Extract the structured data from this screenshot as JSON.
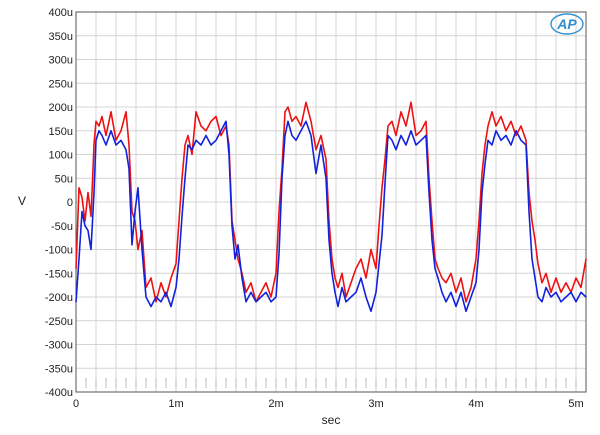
{
  "chart_data": {
    "type": "line",
    "title": "",
    "xlabel": "sec",
    "ylabel": "V",
    "xlim": [
      0,
      0.0051
    ],
    "ylim": [
      -0.0004,
      0.0004
    ],
    "grid": true,
    "x_ticks": [
      0,
      0.001,
      0.002,
      0.003,
      0.004,
      0.005
    ],
    "x_tick_labels": [
      "0",
      "1m",
      "2m",
      "3m",
      "4m",
      "5m"
    ],
    "y_ticks": [
      0.0004,
      0.00035,
      0.0003,
      0.00025,
      0.0002,
      0.00015,
      0.0001,
      5e-05,
      0,
      -5e-05,
      -0.0001,
      -0.00015,
      -0.0002,
      -0.00025,
      -0.0003,
      -0.00035,
      -0.0004
    ],
    "y_tick_labels": [
      "400u",
      "350u",
      "300u",
      "250u",
      "200u",
      "150u",
      "100u",
      "50u",
      "0",
      "-50u",
      "-100u",
      "-150u",
      "-200u",
      "-250u",
      "-300u",
      "-350u",
      "-400u"
    ],
    "logo_text": "AP",
    "colors": {
      "series_red": "#ee1111",
      "series_blue": "#1122dd",
      "grid": "#d4d4d4",
      "axis": "#555555",
      "logo": "#2f8fd0"
    },
    "series": [
      {
        "color": "#ee1111",
        "x": [
          0,
          3e-05,
          6e-05,
          9e-05,
          0.00012,
          0.00015,
          0.00018,
          0.0002,
          0.00023,
          0.00026,
          0.0003,
          0.00035,
          0.0004,
          0.00045,
          0.0005,
          0.00053,
          0.00056,
          0.00059,
          0.00062,
          0.00066,
          0.0007,
          0.00075,
          0.0008,
          0.00085,
          0.0009,
          0.00095,
          0.001,
          0.00103,
          0.00106,
          0.00109,
          0.00112,
          0.00116,
          0.0012,
          0.00125,
          0.0013,
          0.00135,
          0.0014,
          0.00145,
          0.0015,
          0.00153,
          0.00156,
          0.00159,
          0.00162,
          0.00166,
          0.0017,
          0.00175,
          0.0018,
          0.00185,
          0.0019,
          0.00195,
          0.002,
          0.00203,
          0.00206,
          0.00209,
          0.00212,
          0.00216,
          0.0022,
          0.00225,
          0.0023,
          0.00235,
          0.0024,
          0.00245,
          0.0025,
          0.00253,
          0.00256,
          0.00259,
          0.00262,
          0.00266,
          0.0027,
          0.00275,
          0.0028,
          0.00285,
          0.0029,
          0.00295,
          0.003,
          0.00303,
          0.00306,
          0.00309,
          0.00312,
          0.00316,
          0.0032,
          0.00325,
          0.0033,
          0.00335,
          0.0034,
          0.00345,
          0.0035,
          0.00353,
          0.00356,
          0.00359,
          0.00362,
          0.00366,
          0.0037,
          0.00375,
          0.0038,
          0.00385,
          0.0039,
          0.00395,
          0.004,
          0.00403,
          0.00406,
          0.00409,
          0.00412,
          0.00416,
          0.0042,
          0.00425,
          0.0043,
          0.00435,
          0.0044,
          0.00445,
          0.0045,
          0.00453,
          0.00456,
          0.00459,
          0.00462,
          0.00466,
          0.0047,
          0.00475,
          0.0048,
          0.00485,
          0.0049,
          0.00495,
          0.005,
          0.00505,
          0.0051
        ],
        "y": [
          -0.00014,
          3e-05,
          1e-05,
          -4e-05,
          2e-05,
          -3e-05,
          0.00012,
          0.00017,
          0.00016,
          0.00018,
          0.00014,
          0.00019,
          0.00013,
          0.00015,
          0.00019,
          0.00012,
          -2e-05,
          -4e-05,
          -0.0001,
          -6e-05,
          -0.00018,
          -0.00016,
          -0.00021,
          -0.00017,
          -0.0002,
          -0.00016,
          -0.00013,
          -4e-05,
          5e-05,
          0.00012,
          0.00014,
          0.0001,
          0.00019,
          0.00016,
          0.00015,
          0.00017,
          0.00018,
          0.00014,
          0.00016,
          0.00012,
          -4e-05,
          -8e-05,
          -0.00012,
          -0.00015,
          -0.00019,
          -0.00017,
          -0.00021,
          -0.00019,
          -0.00017,
          -0.0002,
          -0.00015,
          -2e-05,
          7e-05,
          0.00019,
          0.0002,
          0.00017,
          0.00018,
          0.00016,
          0.00021,
          0.00017,
          0.00011,
          0.00014,
          9e-05,
          -4e-05,
          -0.00012,
          -0.00016,
          -0.00018,
          -0.00015,
          -0.0002,
          -0.00017,
          -0.00014,
          -0.00012,
          -0.00016,
          -0.0001,
          -0.00014,
          -5e-05,
          3e-05,
          9e-05,
          0.00016,
          0.00017,
          0.00014,
          0.00019,
          0.00016,
          0.00021,
          0.00014,
          0.00015,
          0.00017,
          5e-05,
          -4e-05,
          -0.00012,
          -0.00014,
          -0.00016,
          -0.00017,
          -0.00015,
          -0.00019,
          -0.00016,
          -0.00021,
          -0.00018,
          -0.00012,
          -4e-05,
          6e-05,
          0.00012,
          0.00016,
          0.00019,
          0.00016,
          0.00018,
          0.00015,
          0.00017,
          0.00014,
          0.00016,
          0.00013,
          2e-05,
          -4e-05,
          -8e-05,
          -0.00013,
          -0.00017,
          -0.00015,
          -0.00019,
          -0.00016,
          -0.00019,
          -0.00017,
          -0.00019,
          -0.00016,
          -0.00018,
          -0.00012
        ]
      },
      {
        "color": "#1122dd",
        "x": [
          0,
          3e-05,
          6e-05,
          9e-05,
          0.00012,
          0.00015,
          0.00018,
          0.0002,
          0.00023,
          0.00026,
          0.0003,
          0.00035,
          0.0004,
          0.00045,
          0.0005,
          0.00053,
          0.00056,
          0.00059,
          0.00062,
          0.00066,
          0.0007,
          0.00075,
          0.0008,
          0.00085,
          0.0009,
          0.00095,
          0.001,
          0.00103,
          0.00106,
          0.00109,
          0.00112,
          0.00116,
          0.0012,
          0.00125,
          0.0013,
          0.00135,
          0.0014,
          0.00145,
          0.0015,
          0.00153,
          0.00156,
          0.00159,
          0.00162,
          0.00166,
          0.0017,
          0.00175,
          0.0018,
          0.00185,
          0.0019,
          0.00195,
          0.002,
          0.00203,
          0.00206,
          0.00209,
          0.00212,
          0.00216,
          0.0022,
          0.00225,
          0.0023,
          0.00235,
          0.0024,
          0.00245,
          0.0025,
          0.00253,
          0.00256,
          0.00259,
          0.00262,
          0.00266,
          0.0027,
          0.00275,
          0.0028,
          0.00285,
          0.0029,
          0.00295,
          0.003,
          0.00303,
          0.00306,
          0.00309,
          0.00312,
          0.00316,
          0.0032,
          0.00325,
          0.0033,
          0.00335,
          0.0034,
          0.00345,
          0.0035,
          0.00353,
          0.00356,
          0.00359,
          0.00362,
          0.00366,
          0.0037,
          0.00375,
          0.0038,
          0.00385,
          0.0039,
          0.00395,
          0.004,
          0.00403,
          0.00406,
          0.00409,
          0.00412,
          0.00416,
          0.0042,
          0.00425,
          0.0043,
          0.00435,
          0.0044,
          0.00445,
          0.0045,
          0.00453,
          0.00456,
          0.00459,
          0.00462,
          0.00466,
          0.0047,
          0.00475,
          0.0048,
          0.00485,
          0.0049,
          0.00495,
          0.005,
          0.00505,
          0.0051
        ],
        "y": [
          -0.00021,
          -0.00012,
          -2e-05,
          -5e-05,
          -6e-05,
          -0.0001,
          2e-05,
          0.00013,
          0.00015,
          0.00014,
          0.00012,
          0.00015,
          0.00012,
          0.00013,
          0.00011,
          7e-05,
          -9e-05,
          -2e-05,
          3e-05,
          -0.0001,
          -0.0002,
          -0.00022,
          -0.0002,
          -0.00021,
          -0.00019,
          -0.00022,
          -0.00018,
          -0.00012,
          -3e-05,
          5e-05,
          0.00012,
          0.00011,
          0.00013,
          0.00012,
          0.00014,
          0.00012,
          0.00013,
          0.00015,
          0.00017,
          0.0001,
          -5e-05,
          -0.00012,
          -9e-05,
          -0.00016,
          -0.00021,
          -0.00019,
          -0.00021,
          -0.0002,
          -0.00019,
          -0.00021,
          -0.0002,
          -0.00011,
          5e-05,
          0.00014,
          0.00017,
          0.00014,
          0.00013,
          0.00015,
          0.00017,
          0.00014,
          6e-05,
          0.00012,
          5e-05,
          -8e-05,
          -0.00015,
          -0.00019,
          -0.00022,
          -0.00018,
          -0.00021,
          -0.0002,
          -0.00019,
          -0.00016,
          -0.0002,
          -0.00023,
          -0.00019,
          -0.00013,
          -7e-05,
          4e-05,
          0.00014,
          0.00013,
          0.00011,
          0.00014,
          0.00012,
          0.00015,
          0.00012,
          0.00013,
          0.00014,
          2e-05,
          -8e-05,
          -0.00014,
          -0.00016,
          -0.00019,
          -0.00021,
          -0.00019,
          -0.00022,
          -0.00019,
          -0.00023,
          -0.0002,
          -0.00017,
          -0.0001,
          2e-05,
          8e-05,
          0.00013,
          0.00012,
          0.00015,
          0.00013,
          0.00014,
          0.00012,
          0.00015,
          0.00013,
          0.00012,
          -2e-05,
          -0.00012,
          -0.00016,
          -0.0002,
          -0.00021,
          -0.00018,
          -0.0002,
          -0.00019,
          -0.00021,
          -0.0002,
          -0.00019,
          -0.00021,
          -0.00019,
          -0.0002
        ]
      }
    ]
  }
}
